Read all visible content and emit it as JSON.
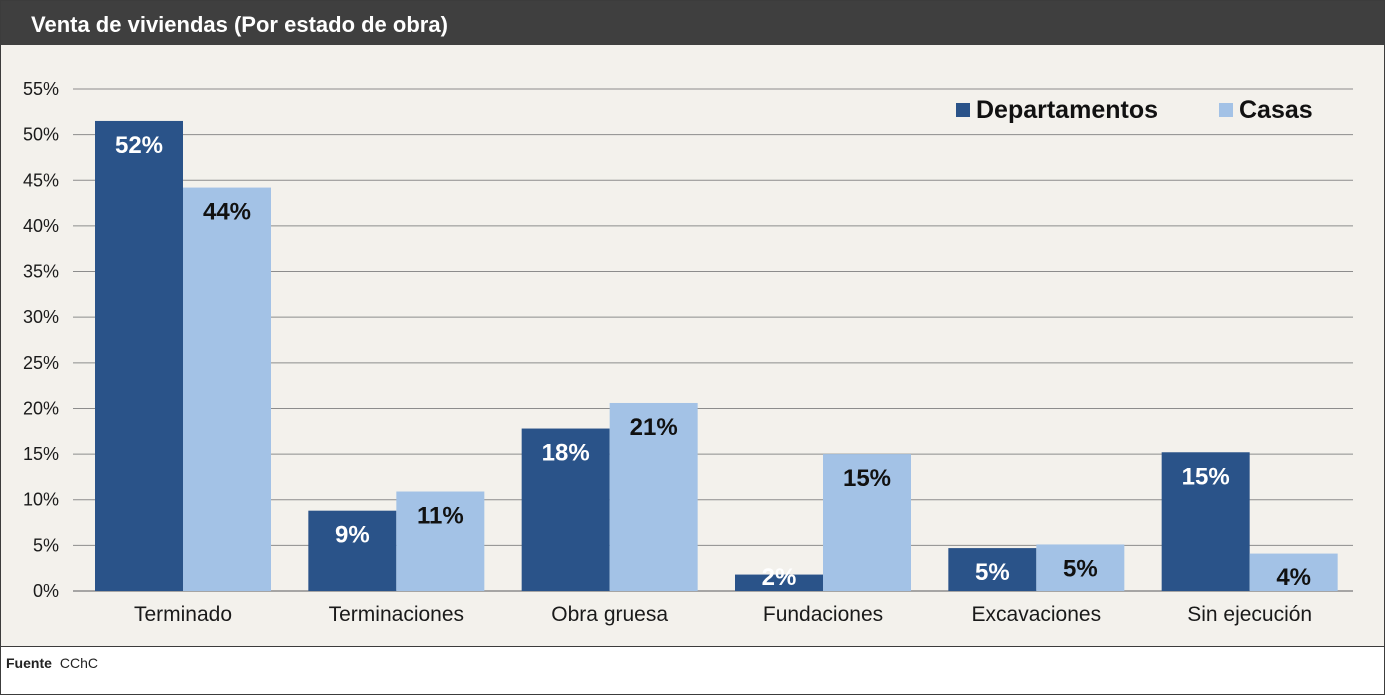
{
  "header": {
    "title": "Venta de viviendas (Por estado de obra)"
  },
  "footer": {
    "source_label": "Fuente",
    "source_value": "CChC"
  },
  "colors": {
    "departamentos": "#2a5389",
    "casas": "#a3c2e6",
    "grid": "#8c8c8c",
    "title_bar": "#3f3f3f",
    "plot_bg": "#f3f1ec"
  },
  "chart_data": {
    "type": "bar",
    "title": "Venta de viviendas (Por estado de obra)",
    "categories": [
      "Terminado",
      "Terminaciones",
      "Obra gruesa",
      "Fundaciones",
      "Excavaciones",
      "Sin ejecución"
    ],
    "series": [
      {
        "name": "Departamentos",
        "values": [
          51.5,
          8.8,
          17.8,
          1.8,
          4.7,
          15.2
        ],
        "labels": [
          "52%",
          "9%",
          "18%",
          "2%",
          "5%",
          "15%"
        ]
      },
      {
        "name": "Casas",
        "values": [
          44.2,
          10.9,
          20.6,
          15.0,
          5.1,
          4.1
        ],
        "labels": [
          "44%",
          "11%",
          "21%",
          "15%",
          "5%",
          "4%"
        ]
      }
    ],
    "ylim": [
      0,
      55
    ],
    "yticks": [
      "0%",
      "5%",
      "10%",
      "15%",
      "20%",
      "25%",
      "30%",
      "35%",
      "40%",
      "45%",
      "50%",
      "55%"
    ],
    "legend": "top-right",
    "xlabel": "",
    "ylabel": ""
  }
}
